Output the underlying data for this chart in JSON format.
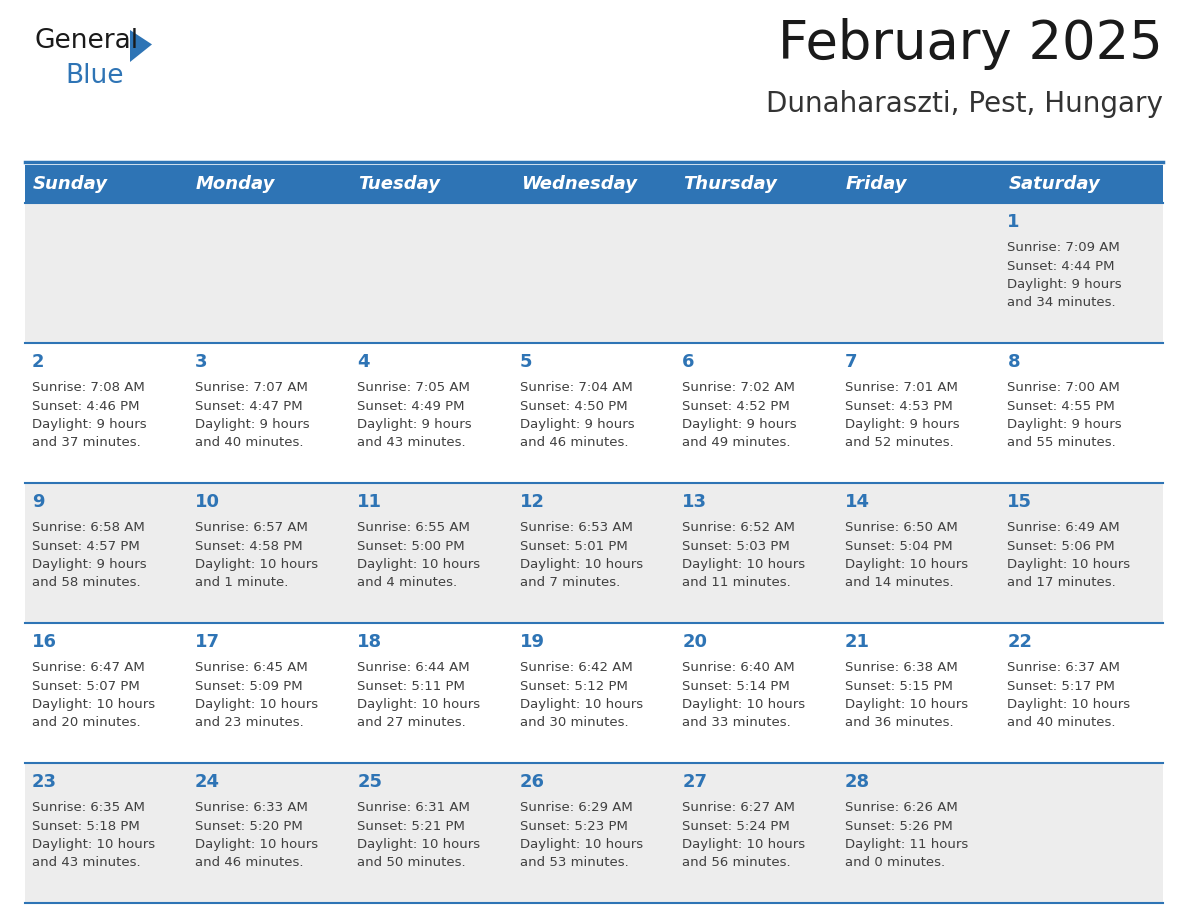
{
  "title": "February 2025",
  "subtitle": "Dunaharaszti, Pest, Hungary",
  "header_bg": "#2E74B5",
  "header_text_color": "#FFFFFF",
  "cell_bg_light": "#EDEDED",
  "cell_bg_white": "#FFFFFF",
  "separator_color": "#2E74B5",
  "day_number_color": "#2E74B5",
  "text_color": "#404040",
  "weekdays": [
    "Sunday",
    "Monday",
    "Tuesday",
    "Wednesday",
    "Thursday",
    "Friday",
    "Saturday"
  ],
  "days": [
    {
      "day": 1,
      "col": 6,
      "row": 0,
      "sunrise": "7:09 AM",
      "sunset": "4:44 PM",
      "daylight": "9 hours",
      "daylight2": "and 34 minutes."
    },
    {
      "day": 2,
      "col": 0,
      "row": 1,
      "sunrise": "7:08 AM",
      "sunset": "4:46 PM",
      "daylight": "9 hours",
      "daylight2": "and 37 minutes."
    },
    {
      "day": 3,
      "col": 1,
      "row": 1,
      "sunrise": "7:07 AM",
      "sunset": "4:47 PM",
      "daylight": "9 hours",
      "daylight2": "and 40 minutes."
    },
    {
      "day": 4,
      "col": 2,
      "row": 1,
      "sunrise": "7:05 AM",
      "sunset": "4:49 PM",
      "daylight": "9 hours",
      "daylight2": "and 43 minutes."
    },
    {
      "day": 5,
      "col": 3,
      "row": 1,
      "sunrise": "7:04 AM",
      "sunset": "4:50 PM",
      "daylight": "9 hours",
      "daylight2": "and 46 minutes."
    },
    {
      "day": 6,
      "col": 4,
      "row": 1,
      "sunrise": "7:02 AM",
      "sunset": "4:52 PM",
      "daylight": "9 hours",
      "daylight2": "and 49 minutes."
    },
    {
      "day": 7,
      "col": 5,
      "row": 1,
      "sunrise": "7:01 AM",
      "sunset": "4:53 PM",
      "daylight": "9 hours",
      "daylight2": "and 52 minutes."
    },
    {
      "day": 8,
      "col": 6,
      "row": 1,
      "sunrise": "7:00 AM",
      "sunset": "4:55 PM",
      "daylight": "9 hours",
      "daylight2": "and 55 minutes."
    },
    {
      "day": 9,
      "col": 0,
      "row": 2,
      "sunrise": "6:58 AM",
      "sunset": "4:57 PM",
      "daylight": "9 hours",
      "daylight2": "and 58 minutes."
    },
    {
      "day": 10,
      "col": 1,
      "row": 2,
      "sunrise": "6:57 AM",
      "sunset": "4:58 PM",
      "daylight": "10 hours",
      "daylight2": "and 1 minute."
    },
    {
      "day": 11,
      "col": 2,
      "row": 2,
      "sunrise": "6:55 AM",
      "sunset": "5:00 PM",
      "daylight": "10 hours",
      "daylight2": "and 4 minutes."
    },
    {
      "day": 12,
      "col": 3,
      "row": 2,
      "sunrise": "6:53 AM",
      "sunset": "5:01 PM",
      "daylight": "10 hours",
      "daylight2": "and 7 minutes."
    },
    {
      "day": 13,
      "col": 4,
      "row": 2,
      "sunrise": "6:52 AM",
      "sunset": "5:03 PM",
      "daylight": "10 hours",
      "daylight2": "and 11 minutes."
    },
    {
      "day": 14,
      "col": 5,
      "row": 2,
      "sunrise": "6:50 AM",
      "sunset": "5:04 PM",
      "daylight": "10 hours",
      "daylight2": "and 14 minutes."
    },
    {
      "day": 15,
      "col": 6,
      "row": 2,
      "sunrise": "6:49 AM",
      "sunset": "5:06 PM",
      "daylight": "10 hours",
      "daylight2": "and 17 minutes."
    },
    {
      "day": 16,
      "col": 0,
      "row": 3,
      "sunrise": "6:47 AM",
      "sunset": "5:07 PM",
      "daylight": "10 hours",
      "daylight2": "and 20 minutes."
    },
    {
      "day": 17,
      "col": 1,
      "row": 3,
      "sunrise": "6:45 AM",
      "sunset": "5:09 PM",
      "daylight": "10 hours",
      "daylight2": "and 23 minutes."
    },
    {
      "day": 18,
      "col": 2,
      "row": 3,
      "sunrise": "6:44 AM",
      "sunset": "5:11 PM",
      "daylight": "10 hours",
      "daylight2": "and 27 minutes."
    },
    {
      "day": 19,
      "col": 3,
      "row": 3,
      "sunrise": "6:42 AM",
      "sunset": "5:12 PM",
      "daylight": "10 hours",
      "daylight2": "and 30 minutes."
    },
    {
      "day": 20,
      "col": 4,
      "row": 3,
      "sunrise": "6:40 AM",
      "sunset": "5:14 PM",
      "daylight": "10 hours",
      "daylight2": "and 33 minutes."
    },
    {
      "day": 21,
      "col": 5,
      "row": 3,
      "sunrise": "6:38 AM",
      "sunset": "5:15 PM",
      "daylight": "10 hours",
      "daylight2": "and 36 minutes."
    },
    {
      "day": 22,
      "col": 6,
      "row": 3,
      "sunrise": "6:37 AM",
      "sunset": "5:17 PM",
      "daylight": "10 hours",
      "daylight2": "and 40 minutes."
    },
    {
      "day": 23,
      "col": 0,
      "row": 4,
      "sunrise": "6:35 AM",
      "sunset": "5:18 PM",
      "daylight": "10 hours",
      "daylight2": "and 43 minutes."
    },
    {
      "day": 24,
      "col": 1,
      "row": 4,
      "sunrise": "6:33 AM",
      "sunset": "5:20 PM",
      "daylight": "10 hours",
      "daylight2": "and 46 minutes."
    },
    {
      "day": 25,
      "col": 2,
      "row": 4,
      "sunrise": "6:31 AM",
      "sunset": "5:21 PM",
      "daylight": "10 hours",
      "daylight2": "and 50 minutes."
    },
    {
      "day": 26,
      "col": 3,
      "row": 4,
      "sunrise": "6:29 AM",
      "sunset": "5:23 PM",
      "daylight": "10 hours",
      "daylight2": "and 53 minutes."
    },
    {
      "day": 27,
      "col": 4,
      "row": 4,
      "sunrise": "6:27 AM",
      "sunset": "5:24 PM",
      "daylight": "10 hours",
      "daylight2": "and 56 minutes."
    },
    {
      "day": 28,
      "col": 5,
      "row": 4,
      "sunrise": "6:26 AM",
      "sunset": "5:26 PM",
      "daylight": "11 hours",
      "daylight2": "and 0 minutes."
    }
  ],
  "num_rows": 5,
  "title_fontsize": 38,
  "subtitle_fontsize": 20,
  "header_fontsize": 13,
  "day_number_fontsize": 13,
  "cell_text_fontsize": 9.5
}
